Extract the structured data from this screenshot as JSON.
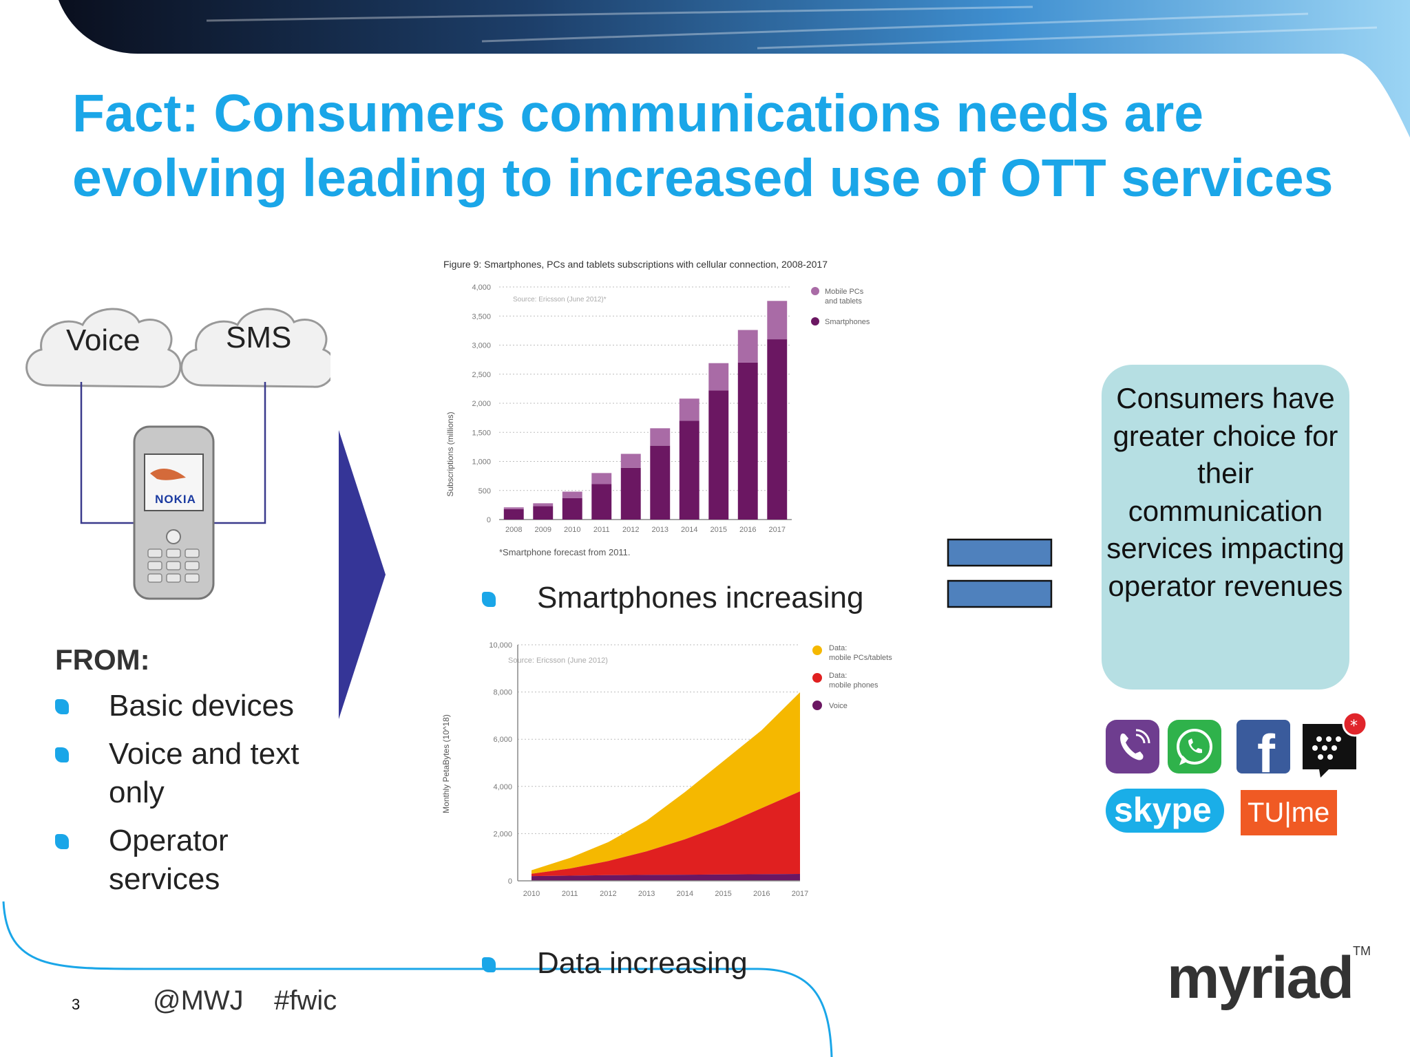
{
  "title": "Fact: Consumers communications needs are evolving leading to increased use of OTT services",
  "left": {
    "clouds": [
      "Voice",
      "SMS"
    ],
    "phone_brand": "NOKIA",
    "heading": "FROM:",
    "items": [
      "Basic devices",
      "Voice and text only",
      "Operator services"
    ]
  },
  "captions": {
    "smartphones": "Smartphones increasing",
    "data": "Data increasing"
  },
  "result_box": "Consumers have greater choice for their communication services impacting operator revenues",
  "apps": {
    "icons": [
      "viber-icon",
      "whatsapp-icon",
      "facebook-icon",
      "bbm-icon",
      "skype-icon",
      "tu-me-icon"
    ],
    "skype_text": "skype",
    "tume_text": "TU|me",
    "facebook_letter": "f"
  },
  "footer": {
    "page_number": "3",
    "social": "@MWJ    #fwic",
    "logo": "myriad",
    "logo_tm": "TM"
  },
  "colors": {
    "title": "#1aa6e8",
    "arrow": "#353597",
    "equals": "#4f81bd",
    "box": "#b6dfe3",
    "bar_smartphones": "#6b1762",
    "bar_mobile_pcs": "#a96ba6",
    "area_data_pcs": "#f5b800",
    "area_data_phones": "#e02020",
    "area_voice": "#6b1762"
  },
  "chart_data": [
    {
      "type": "bar",
      "stacked": true,
      "title": "Figure 9: Smartphones, PCs and tablets subscriptions with cellular connection, 2008-2017",
      "source": "Source: Ericsson (June 2012)*",
      "footnote": "*Smartphone forecast from 2011.",
      "ylabel": "Subscriptions (millions)",
      "xlabel": "",
      "categories": [
        "2008",
        "2009",
        "2010",
        "2011",
        "2012",
        "2013",
        "2014",
        "2015",
        "2016",
        "2017"
      ],
      "yticks": [
        0,
        500,
        1000,
        1500,
        2000,
        2500,
        3000,
        3500,
        4000
      ],
      "ytick_labels": [
        "0",
        "500",
        "1,000",
        "1,500",
        "2,000",
        "2,500",
        "3,000",
        "3,500",
        "4,000"
      ],
      "ylim": [
        0,
        4000
      ],
      "grid": true,
      "legend_position": "top-right",
      "series": [
        {
          "name": "Smartphones",
          "values": [
            180,
            230,
            370,
            610,
            890,
            1270,
            1700,
            2220,
            2700,
            3100
          ]
        },
        {
          "name": "Mobile PCs and tablets",
          "values": [
            30,
            50,
            110,
            190,
            240,
            300,
            380,
            470,
            560,
            660
          ]
        }
      ],
      "legend": [
        "Mobile PCs",
        "and tablets",
        "Smartphones"
      ]
    },
    {
      "type": "area",
      "stacked": true,
      "source": "Source: Ericsson (June 2012)",
      "ylabel": "Monthly PetaBytes (10^18)",
      "xlabel": "",
      "categories": [
        "2010",
        "2011",
        "2012",
        "2013",
        "2014",
        "2015",
        "2016",
        "2017"
      ],
      "yticks": [
        0,
        2000,
        4000,
        6000,
        8000,
        10000
      ],
      "ytick_labels": [
        "0",
        "2,000",
        "4,000",
        "6,000",
        "8,000",
        "10,000"
      ],
      "ylim": [
        0,
        10000
      ],
      "grid": true,
      "legend_position": "top-right",
      "series": [
        {
          "name": "Voice",
          "values": [
            200,
            220,
            240,
            250,
            260,
            270,
            280,
            290
          ]
        },
        {
          "name": "Data: mobile phones",
          "values": [
            100,
            300,
            600,
            1000,
            1500,
            2100,
            2800,
            3500
          ]
        },
        {
          "name": "Data: mobile PCs/tablets",
          "values": [
            150,
            450,
            800,
            1300,
            2000,
            2700,
            3300,
            4200
          ]
        }
      ],
      "legend": [
        "Data:",
        "mobile PCs/tablets",
        "Data:",
        "mobile phones",
        "Voice"
      ]
    }
  ]
}
